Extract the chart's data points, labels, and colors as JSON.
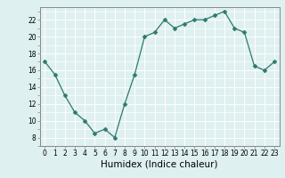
{
  "x": [
    0,
    1,
    2,
    3,
    4,
    5,
    6,
    7,
    8,
    9,
    10,
    11,
    12,
    13,
    14,
    15,
    16,
    17,
    18,
    19,
    20,
    21,
    22,
    23
  ],
  "y": [
    17,
    15.5,
    13,
    11,
    10,
    8.5,
    9,
    8,
    12,
    15.5,
    20,
    20.5,
    22,
    21,
    21.5,
    22,
    22,
    22.5,
    23,
    21,
    20.5,
    16.5,
    16,
    17
  ],
  "line_color": "#2d7a6e",
  "marker": "D",
  "marker_size": 2.5,
  "bg_color": "#dff0f0",
  "grid_color": "#ffffff",
  "xlabel": "Humidex (Indice chaleur)",
  "xlim": [
    -0.5,
    23.5
  ],
  "ylim": [
    7,
    23.5
  ],
  "yticks": [
    8,
    10,
    12,
    14,
    16,
    18,
    20,
    22
  ],
  "xticks": [
    0,
    1,
    2,
    3,
    4,
    5,
    6,
    7,
    8,
    9,
    10,
    11,
    12,
    13,
    14,
    15,
    16,
    17,
    18,
    19,
    20,
    21,
    22,
    23
  ],
  "tick_label_fontsize": 5.5,
  "xlabel_fontsize": 7.5
}
